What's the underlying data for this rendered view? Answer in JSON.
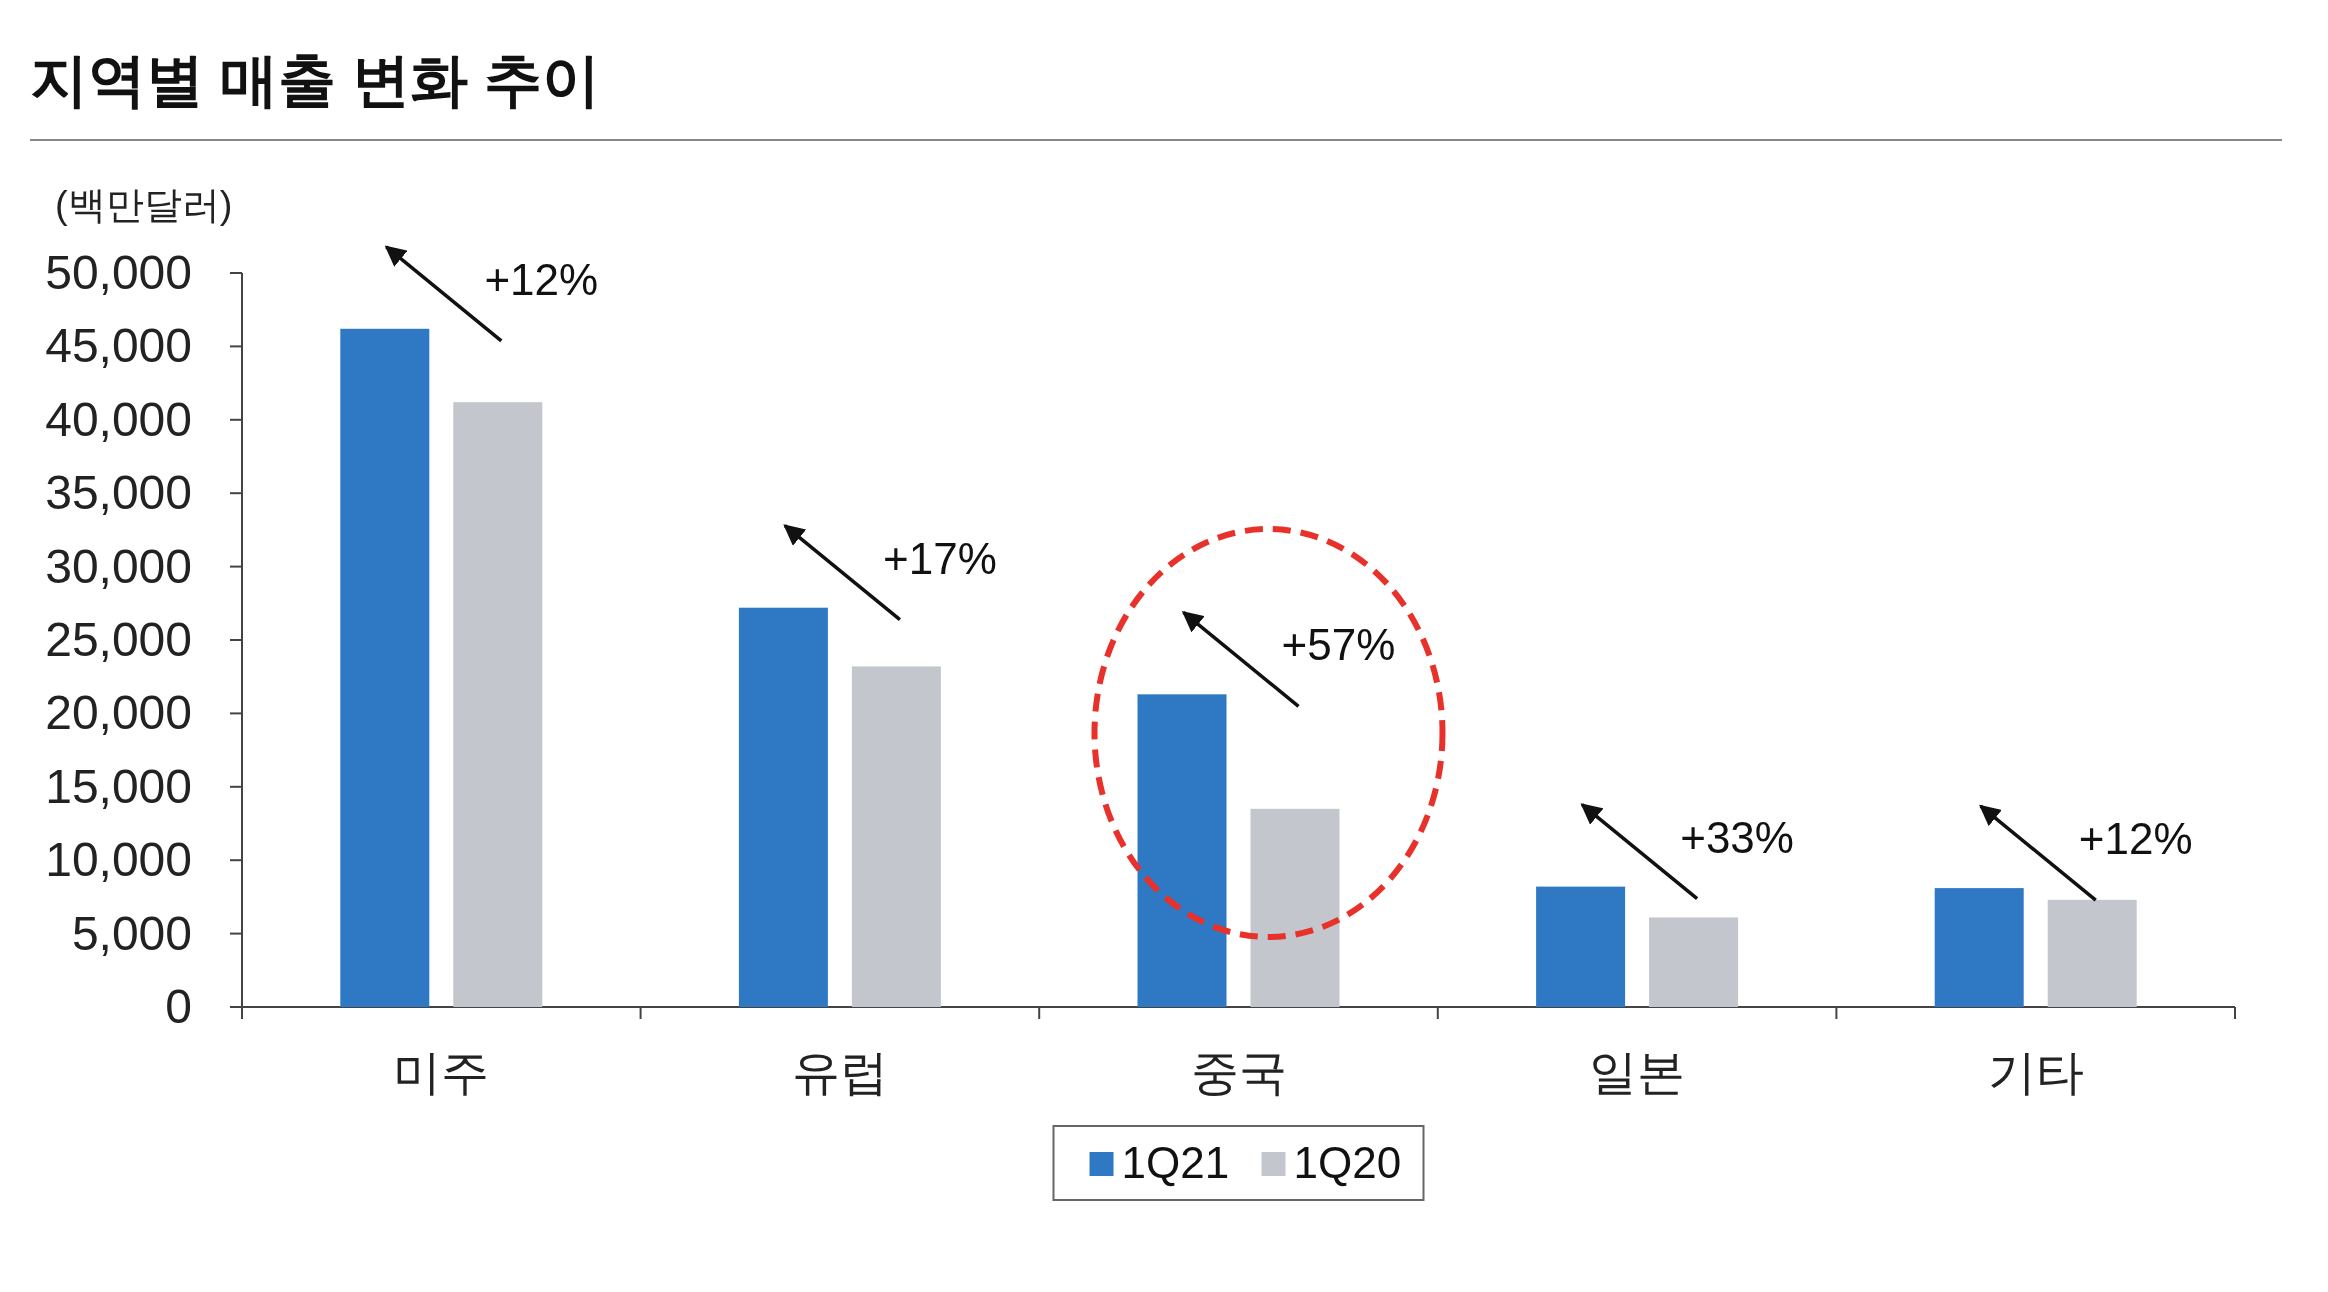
{
  "chart_data": {
    "type": "bar",
    "title": "지역별 매출 변화 추이",
    "ylabel": "(백만달러)",
    "categories": [
      "미주",
      "유럽",
      "중국",
      "일본",
      "기타"
    ],
    "series": [
      {
        "name": "1Q21",
        "color": "#2f78c4",
        "values": [
          46200,
          27200,
          21300,
          8200,
          8100
        ]
      },
      {
        "name": "1Q20",
        "color": "#c4c6ce",
        "values": [
          41200,
          23200,
          13500,
          6100,
          7300
        ]
      }
    ],
    "ylim": [
      0,
      50000
    ],
    "yticks": [
      0,
      {
        "value": 5000,
        "label": "5,000"
      },
      {
        "value": 10000,
        "label": "10,000"
      },
      {
        "value": 15000,
        "label": "15,000"
      },
      {
        "value": 20000,
        "label": "20,000"
      },
      {
        "value": 25000,
        "label": "25,000"
      },
      {
        "value": 30000,
        "label": "30,000"
      },
      {
        "value": 35000,
        "label": "35,000"
      },
      {
        "value": 40000,
        "label": "40,000"
      },
      {
        "value": 45000,
        "label": "45,000"
      },
      {
        "value": 50000,
        "label": "50,000"
      }
    ],
    "annotations": [
      "+12%",
      "+17%",
      "+57%",
      "+33%",
      "+12%"
    ],
    "grid": false,
    "legend": "bottom"
  }
}
